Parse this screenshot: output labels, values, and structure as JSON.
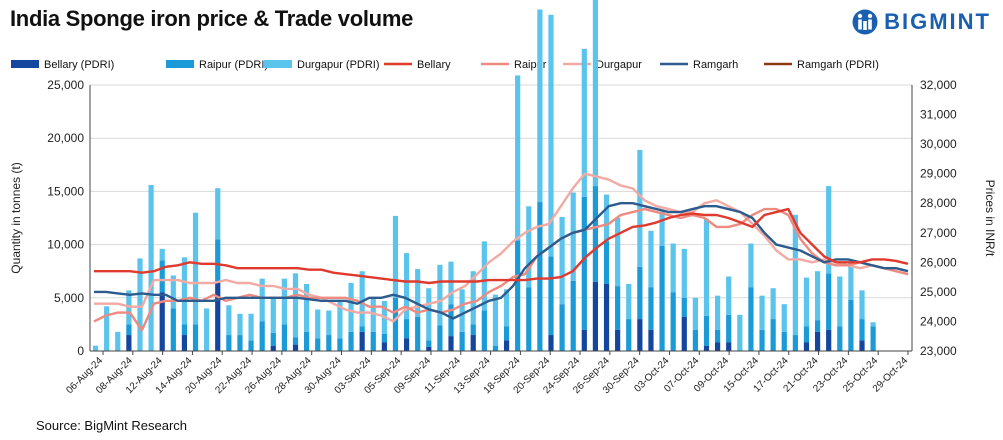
{
  "title": "India Sponge iron price & Trade volume",
  "brand": "BIGMINT",
  "source": "Source: BigMint Research",
  "colors": {
    "bellary_bar": "#1446a0",
    "raipur_bar": "#1a9ad6",
    "durgapur_bar": "#5bc4ec",
    "bellary_line": "#e03a2e",
    "raipur_line": "#ee8a7f",
    "durgapur_line": "#f2aaa3",
    "ramgarh_line": "#2c5c8e",
    "ramgarh_pdri": "#8b3a12"
  },
  "chart_data": {
    "type": "bar+line",
    "title": "India Sponge iron price & Trade volume",
    "ylabel_left": "Quantity in tonnes (t)",
    "ylabel_right": "Prices in INR/t",
    "ylim_left": [
      0,
      25000
    ],
    "ylim_right": [
      23000,
      32000
    ],
    "yticks_left": [
      "0",
      "5,000",
      "10,000",
      "15,000",
      "20,000",
      "25,000"
    ],
    "yticks_right": [
      "23,000",
      "24,000",
      "25,000",
      "26,000",
      "27,000",
      "28,000",
      "29,000",
      "30,000",
      "31,000",
      "32,000"
    ],
    "x_tick_labels": [
      "06-Aug-24",
      "08-Aug-24",
      "12-Aug-24",
      "14-Aug-24",
      "20-Aug-24",
      "22-Aug-24",
      "26-Aug-24",
      "28-Aug-24",
      "30-Aug-24",
      "03-Sep-24",
      "05-Sep-24",
      "09-Sep-24",
      "11-Sep-24",
      "13-Sep-24",
      "18-Sep-24",
      "20-Sep-24",
      "24-Sep-24",
      "26-Sep-24",
      "30-Sep-24",
      "03-Oct-24",
      "07-Oct-24",
      "09-Oct-24",
      "15-Oct-24",
      "17-Oct-24",
      "21-Oct-24",
      "23-Oct-24",
      "25-Oct-24",
      "29-Oct-24"
    ],
    "legend": [
      "Bellary (PDRI)",
      "Raipur (PDRI)",
      "Durgapur (PDRI)",
      "Bellary",
      "Raipur",
      "Durgapur",
      "Ramgarh",
      "Ramgarh (PDRI)"
    ],
    "bar_series": [
      {
        "name": "Bellary (PDRI)",
        "values": [
          0,
          0,
          0,
          1500,
          0,
          0,
          5500,
          0,
          1500,
          0,
          0,
          6500,
          0,
          0,
          0,
          0,
          500,
          0,
          600,
          0,
          0,
          0,
          0,
          0,
          1800,
          0,
          800,
          0,
          1200,
          0,
          400,
          0,
          1400,
          0,
          1500,
          0,
          0,
          1000,
          0,
          0,
          0,
          1500,
          0,
          0,
          2000,
          6500,
          6300,
          2000,
          0,
          3000,
          2000,
          0,
          0,
          3200,
          0,
          500,
          800,
          800,
          0,
          0,
          0,
          0,
          0,
          0,
          800,
          1800,
          2000,
          0,
          0,
          1000,
          0,
          0,
          0,
          0
        ]
      },
      {
        "name": "Raipur (PDRI)",
        "values": [
          0,
          0,
          0,
          1000,
          0,
          0,
          3000,
          4000,
          1000,
          2500,
          0,
          4000,
          1500,
          1500,
          1000,
          2800,
          1200,
          2500,
          700,
          1800,
          1200,
          1500,
          1200,
          1800,
          500,
          1800,
          800,
          5000,
          1800,
          3200,
          600,
          2400,
          3000,
          1800,
          1000,
          3800,
          500,
          1300,
          10400,
          6000,
          14000,
          7400,
          4400,
          6600,
          12500,
          9000,
          4000,
          4100,
          3000,
          4900,
          4000,
          9900,
          5500,
          1800,
          2000,
          2800,
          1200,
          2600,
          0,
          6000,
          2000,
          3000,
          1800,
          1500,
          1500,
          1100,
          5300,
          2300,
          4800,
          2000,
          2300,
          0,
          0,
          0
        ]
      },
      {
        "name": "Durgapur (PDRI)",
        "values": [
          500,
          4200,
          1800,
          3200,
          8700,
          15600,
          1100,
          3100,
          6300,
          10500,
          4000,
          4800,
          2800,
          2000,
          2500,
          4000,
          3200,
          4300,
          6000,
          4500,
          2700,
          2300,
          3400,
          4600,
          5200,
          3200,
          3100,
          7700,
          6200,
          4500,
          4900,
          5700,
          4000,
          4000,
          5000,
          6500,
          4800,
          3500,
          15500,
          7600,
          18100,
          22700,
          8200,
          8300,
          13900,
          19200,
          4400,
          6400,
          3300,
          11000,
          5300,
          3200,
          4600,
          4600,
          3000,
          9100,
          3200,
          3600,
          3400,
          4100,
          3200,
          2900,
          2600,
          11300,
          4600,
          4600,
          8200,
          4700,
          3500,
          2700,
          400,
          0,
          0,
          0
        ]
      }
    ],
    "line_series": [
      {
        "name": "Bellary",
        "values": [
          25700,
          25700,
          25700,
          25700,
          25650,
          25700,
          25850,
          25900,
          26000,
          25950,
          25950,
          25900,
          25800,
          25800,
          25800,
          25800,
          25800,
          25800,
          25750,
          25750,
          25650,
          25600,
          25550,
          25500,
          25450,
          25400,
          25350,
          25350,
          25300,
          25350,
          25350,
          25350,
          25350,
          25400,
          25400,
          25400,
          25400,
          25450,
          25450,
          25500,
          25700,
          26150,
          26500,
          26800,
          27000,
          27200,
          27250,
          27350,
          27500,
          27600,
          27650,
          27600,
          27600,
          27500,
          27350,
          27200,
          27600,
          27700,
          27800,
          27000,
          26600,
          26200,
          26000,
          26000,
          26000,
          26100,
          26100,
          26050,
          25950
        ]
      },
      {
        "name": "Raipur",
        "values": [
          24000,
          24200,
          24300,
          24300,
          23700,
          24600,
          24700,
          24700,
          24800,
          24700,
          24900,
          24700,
          24800,
          24900,
          24800,
          24800,
          24800,
          24900,
          24800,
          24800,
          24800,
          24800,
          24700,
          24500,
          24500,
          24300,
          24500,
          24300,
          24400,
          24300,
          24400,
          24600,
          24700,
          25000,
          25200,
          25500,
          25600,
          26200,
          26500,
          26800,
          27000,
          27100,
          27200,
          27300,
          27600,
          27700,
          27800,
          27700,
          27600,
          27500,
          27600,
          27500,
          27200,
          27200,
          27300,
          27600,
          27800,
          27800,
          27600,
          26800,
          26300,
          26000,
          25900,
          25900,
          26000,
          25900,
          25800,
          25700,
          25600
        ]
      },
      {
        "name": "Durgapur",
        "values": [
          24600,
          24600,
          24600,
          24500,
          24500,
          25400,
          25400,
          25400,
          25300,
          25300,
          25300,
          25400,
          25300,
          25300,
          25200,
          25200,
          25100,
          25100,
          24900,
          24800,
          24600,
          24400,
          24300,
          24300,
          24200,
          24000,
          24400,
          24500,
          24600,
          24700,
          25000,
          25200,
          25600,
          26000,
          26300,
          26700,
          27000,
          27200,
          27300,
          27900,
          28500,
          29000,
          28900,
          28800,
          28600,
          28500,
          28100,
          27900,
          27800,
          27700,
          27700,
          28000,
          28100,
          27900,
          27700,
          27300,
          26900,
          26400,
          26100,
          26100,
          26000,
          26100,
          26000,
          25900,
          25800,
          25900,
          25800,
          25700,
          25600
        ]
      },
      {
        "name": "Ramgarh",
        "values": [
          25000,
          25000,
          24950,
          24900,
          24950,
          24900,
          24900,
          24700,
          24700,
          24700,
          24700,
          24800,
          24800,
          24800,
          24800,
          24800,
          24800,
          24800,
          24750,
          24700,
          24700,
          24700,
          24600,
          24800,
          24800,
          24900,
          24800,
          24600,
          24400,
          24300,
          24100,
          24300,
          24500,
          24700,
          24800,
          25200,
          25800,
          26200,
          26500,
          26800,
          27000,
          27100,
          27500,
          27900,
          28000,
          28000,
          27900,
          27800,
          27700,
          27700,
          27800,
          27900,
          27900,
          27800,
          27700,
          27500,
          27000,
          26600,
          26500,
          26400,
          26200,
          26000,
          26100,
          26100,
          26000,
          25900,
          25800,
          25800,
          25700
        ]
      }
    ]
  }
}
